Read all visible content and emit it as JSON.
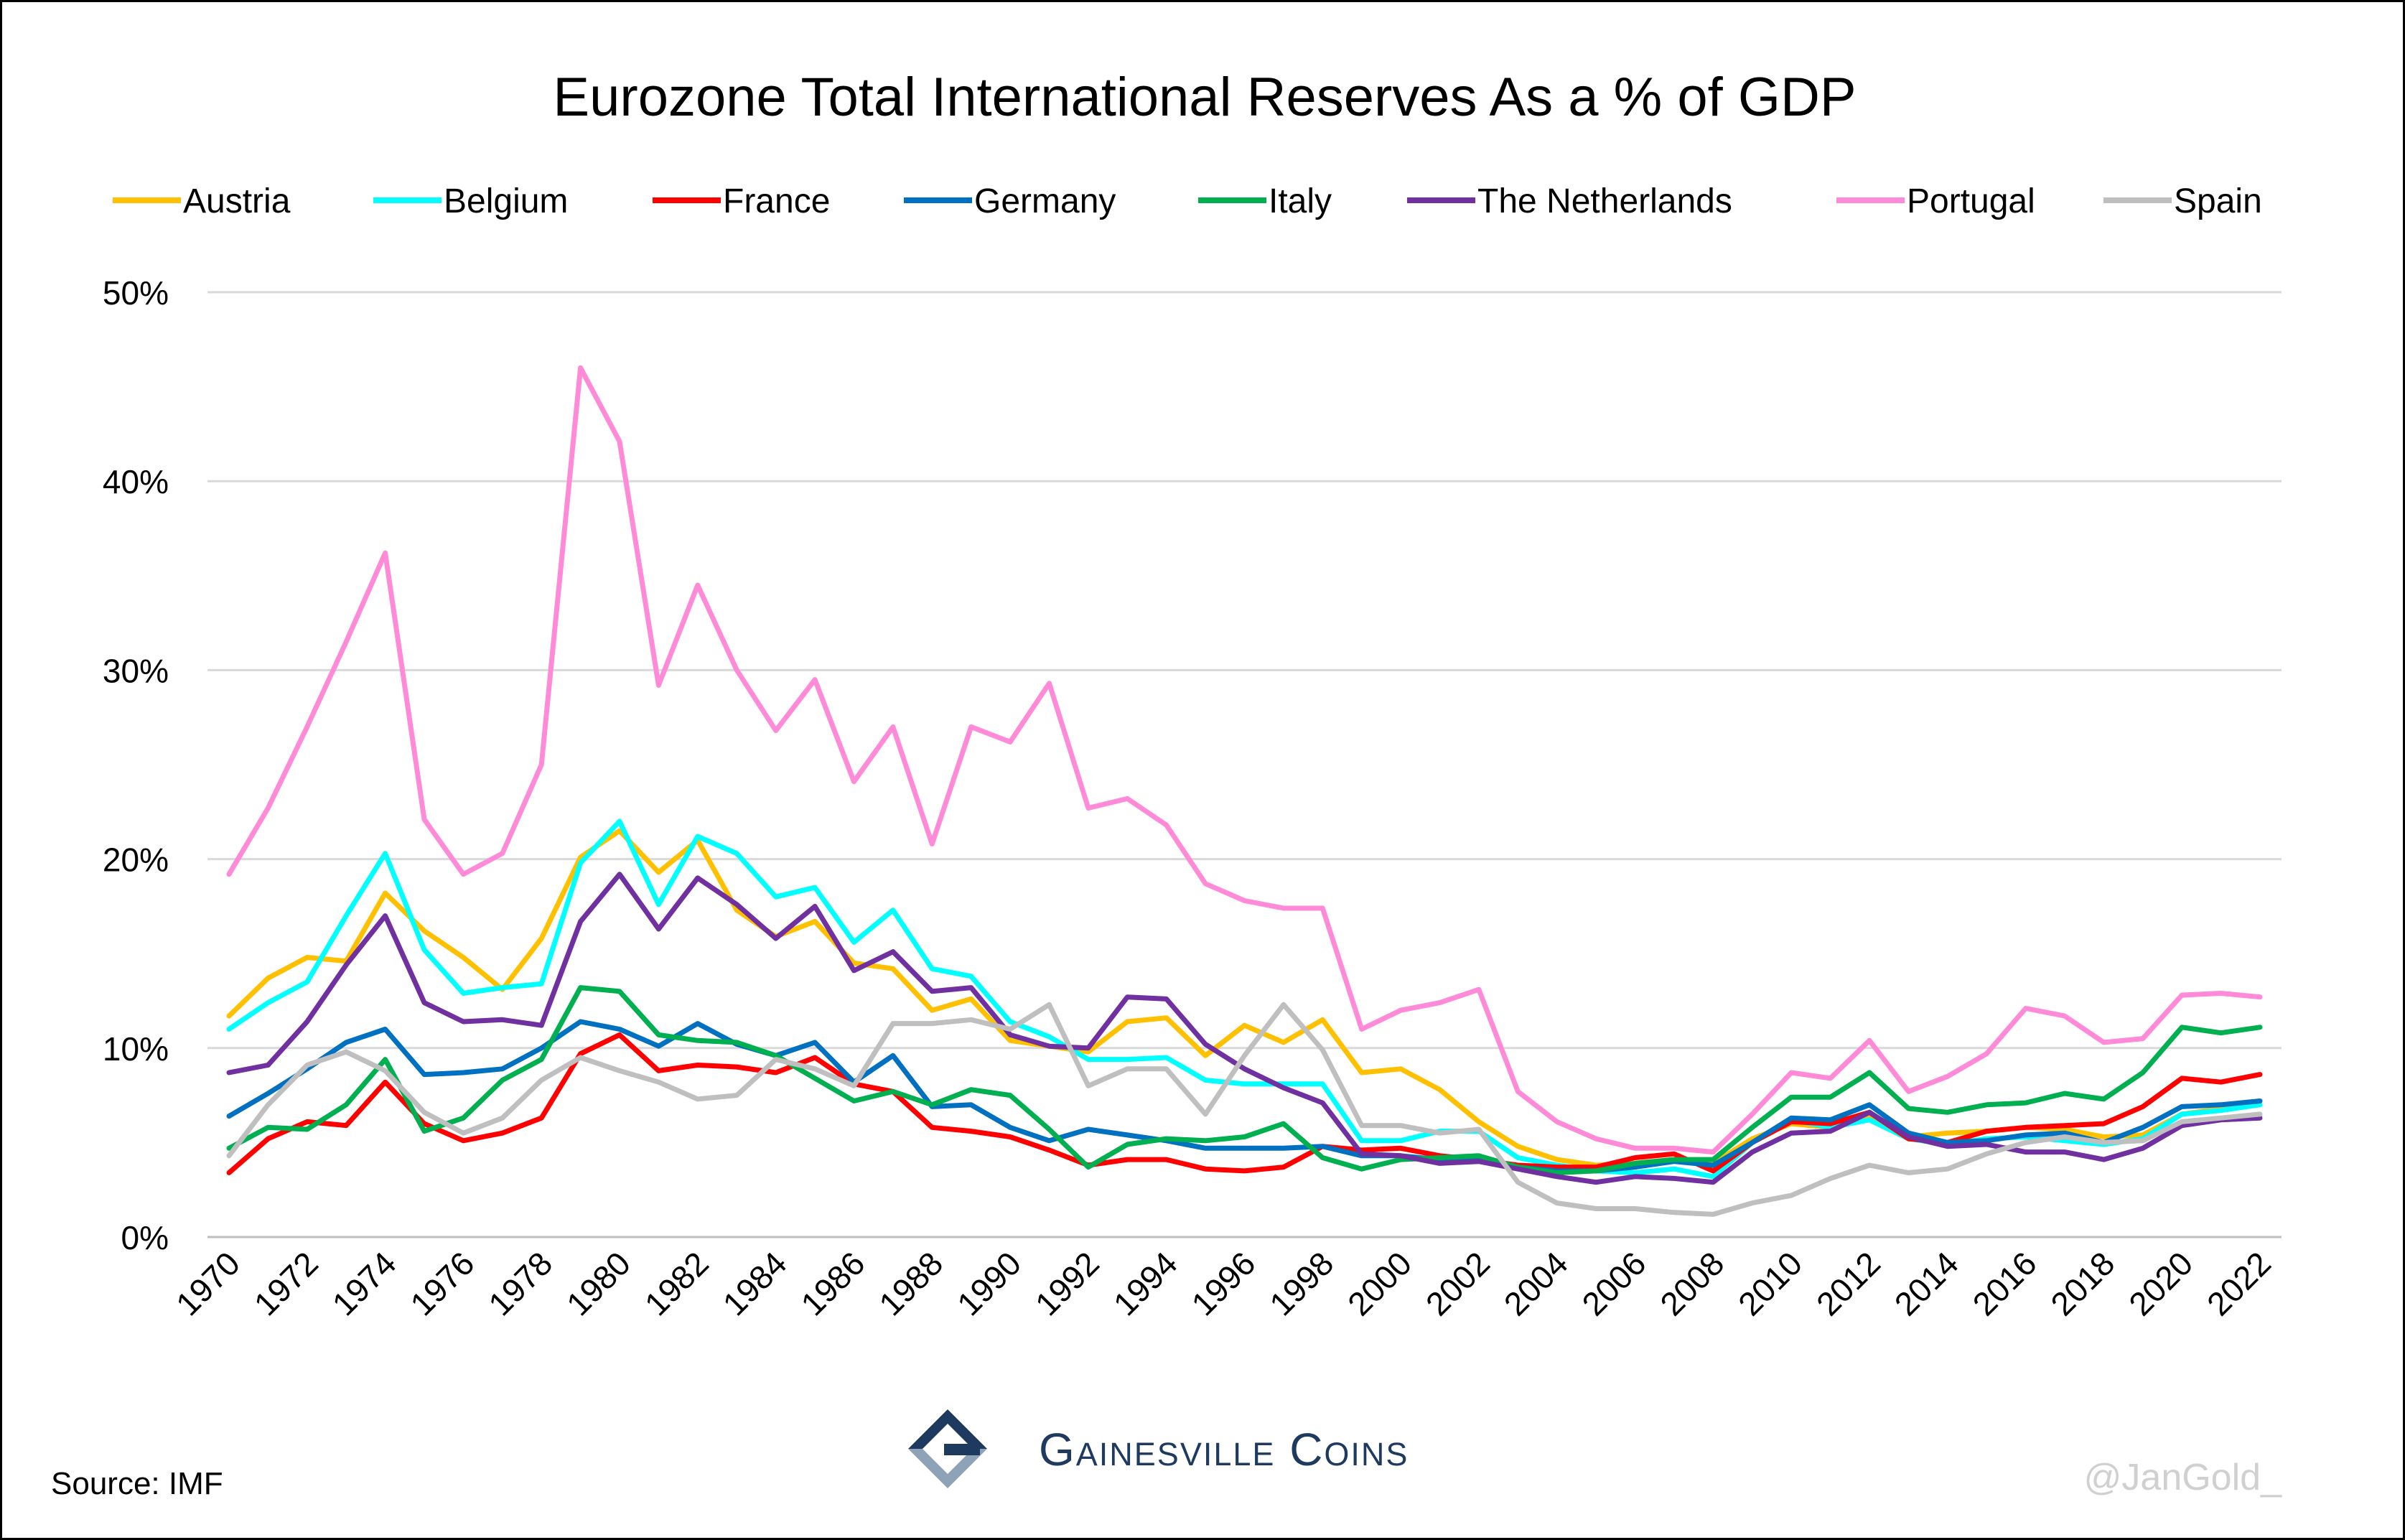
{
  "chart_data": {
    "type": "line",
    "title": "Eurozone Total International Reserves As a % of GDP",
    "xlabel": "",
    "ylabel": "",
    "ylim": [
      0,
      50
    ],
    "y_ticks": [
      "0%",
      "10%",
      "20%",
      "30%",
      "40%",
      "50%"
    ],
    "y_tick_values": [
      0,
      10,
      20,
      30,
      40,
      50
    ],
    "x_tick_labels": [
      "1970",
      "1972",
      "1974",
      "1976",
      "1978",
      "1980",
      "1982",
      "1984",
      "1986",
      "1988",
      "1990",
      "1992",
      "1994",
      "1996",
      "1998",
      "2000",
      "2002",
      "2004",
      "2006",
      "2008",
      "2010",
      "2012",
      "2014",
      "2016",
      "2018",
      "2020",
      "2022"
    ],
    "grid": "horizontal",
    "legend_position": "top",
    "x": [
      1970,
      1971,
      1972,
      1973,
      1974,
      1975,
      1976,
      1977,
      1978,
      1979,
      1980,
      1981,
      1982,
      1983,
      1984,
      1985,
      1986,
      1987,
      1988,
      1989,
      1990,
      1991,
      1992,
      1993,
      1994,
      1995,
      1996,
      1997,
      1998,
      1999,
      2000,
      2001,
      2002,
      2003,
      2004,
      2005,
      2006,
      2007,
      2008,
      2009,
      2010,
      2011,
      2012,
      2013,
      2014,
      2015,
      2016,
      2017,
      2018,
      2019,
      2020,
      2021,
      2022
    ],
    "series": [
      {
        "name": "Austria",
        "color": "#FFC000",
        "values": [
          11.7,
          13.7,
          14.8,
          14.6,
          18.2,
          16.2,
          14.8,
          13.1,
          15.8,
          20.1,
          21.5,
          19.3,
          21.0,
          17.3,
          15.9,
          16.7,
          14.5,
          14.2,
          12.0,
          12.6,
          10.4,
          10.1,
          9.8,
          11.4,
          11.6,
          9.6,
          11.2,
          10.3,
          11.5,
          8.7,
          8.9,
          7.8,
          6.1,
          4.8,
          4.1,
          3.8,
          3.9,
          4.1,
          3.9,
          5.2,
          6.0,
          5.8,
          6.4,
          5.3,
          5.5,
          5.6,
          5.8,
          5.7,
          5.3,
          5.4,
          6.5,
          6.8,
          7.0
        ]
      },
      {
        "name": "Belgium",
        "color": "#00FFFF",
        "values": [
          11.0,
          12.4,
          13.5,
          17.0,
          20.3,
          15.2,
          12.9,
          13.2,
          13.4,
          19.8,
          22.0,
          17.6,
          21.2,
          20.3,
          18.0,
          18.5,
          15.6,
          17.3,
          14.2,
          13.8,
          11.4,
          10.6,
          9.4,
          9.4,
          9.5,
          8.3,
          8.1,
          8.1,
          8.1,
          5.1,
          5.1,
          5.6,
          5.6,
          4.2,
          3.8,
          3.5,
          3.4,
          3.6,
          3.2,
          5.0,
          6.2,
          5.8,
          6.2,
          5.2,
          4.9,
          5.2,
          5.3,
          5.1,
          4.9,
          5.2,
          6.5,
          6.7,
          7.0
        ]
      },
      {
        "name": "France",
        "color": "#FF0000",
        "values": [
          3.4,
          5.2,
          6.1,
          5.9,
          8.2,
          6.0,
          5.1,
          5.5,
          6.3,
          9.7,
          10.7,
          8.8,
          9.1,
          9.0,
          8.7,
          9.5,
          8.1,
          7.7,
          5.8,
          5.6,
          5.3,
          4.6,
          3.8,
          4.1,
          4.1,
          3.6,
          3.5,
          3.7,
          4.8,
          4.6,
          4.7,
          4.3,
          4.1,
          3.8,
          3.7,
          3.7,
          4.2,
          4.4,
          3.5,
          5.0,
          6.1,
          6.0,
          6.6,
          5.2,
          5.0,
          5.6,
          5.8,
          5.9,
          6.0,
          6.9,
          8.4,
          8.2,
          8.6
        ]
      },
      {
        "name": "Germany",
        "color": "#0070C0",
        "values": [
          6.4,
          7.6,
          8.9,
          10.3,
          11.0,
          8.6,
          8.7,
          8.9,
          10.0,
          11.4,
          11.0,
          10.1,
          11.3,
          10.2,
          9.6,
          10.3,
          8.2,
          9.6,
          6.9,
          7.0,
          5.8,
          5.1,
          5.7,
          5.4,
          5.1,
          4.7,
          4.7,
          4.7,
          4.8,
          4.3,
          4.3,
          4.1,
          4.1,
          3.7,
          3.5,
          3.5,
          3.7,
          4.0,
          3.8,
          5.0,
          6.3,
          6.2,
          7.0,
          5.5,
          5.0,
          5.1,
          5.4,
          5.5,
          5.0,
          5.8,
          6.9,
          7.0,
          7.2
        ]
      },
      {
        "name": "Italy",
        "color": "#00B050",
        "values": [
          4.7,
          5.8,
          5.7,
          7.0,
          9.4,
          5.6,
          6.3,
          8.3,
          9.4,
          13.2,
          13.0,
          10.7,
          10.4,
          10.3,
          9.6,
          8.4,
          7.2,
          7.7,
          7.0,
          7.8,
          7.5,
          5.7,
          3.7,
          4.9,
          5.2,
          5.1,
          5.3,
          6.0,
          4.2,
          3.6,
          4.1,
          4.2,
          4.3,
          3.7,
          3.4,
          3.5,
          3.9,
          4.1,
          4.1,
          5.8,
          7.4,
          7.4,
          8.7,
          6.8,
          6.6,
          7.0,
          7.1,
          7.6,
          7.3,
          8.7,
          11.1,
          10.8,
          11.1
        ]
      },
      {
        "name": "The Netherlands",
        "color": "#7030A0",
        "values": [
          8.7,
          9.1,
          11.4,
          14.4,
          17.0,
          12.4,
          11.4,
          11.5,
          11.2,
          16.7,
          19.2,
          16.3,
          19.0,
          17.6,
          15.8,
          17.5,
          14.1,
          15.1,
          13.0,
          13.2,
          10.7,
          10.1,
          10.0,
          12.7,
          12.6,
          10.2,
          8.9,
          7.9,
          7.1,
          4.4,
          4.3,
          3.9,
          4.0,
          3.6,
          3.2,
          2.9,
          3.2,
          3.1,
          2.9,
          4.5,
          5.5,
          5.6,
          6.6,
          5.3,
          4.8,
          4.9,
          4.5,
          4.5,
          4.1,
          4.7,
          5.9,
          6.2,
          6.3
        ]
      },
      {
        "name": "Portugal",
        "color": "#FF8AD8",
        "values": [
          19.2,
          22.7,
          27.0,
          31.5,
          36.2,
          22.1,
          19.2,
          20.3,
          25.0,
          46.0,
          42.1,
          29.2,
          34.5,
          30.0,
          26.8,
          29.5,
          24.1,
          27.0,
          20.8,
          27.0,
          26.2,
          29.3,
          22.7,
          23.2,
          21.8,
          18.7,
          17.8,
          17.4,
          17.4,
          11.0,
          12.0,
          12.4,
          13.1,
          7.7,
          6.1,
          5.2,
          4.7,
          4.7,
          4.5,
          6.5,
          8.7,
          8.4,
          10.4,
          7.7,
          8.5,
          9.7,
          12.1,
          11.7,
          10.3,
          10.5,
          12.8,
          12.9,
          12.7
        ]
      },
      {
        "name": "Spain",
        "color": "#BFBFBF",
        "values": [
          4.3,
          7.0,
          9.1,
          9.8,
          8.8,
          6.6,
          5.5,
          6.3,
          8.3,
          9.5,
          8.8,
          8.2,
          7.3,
          7.5,
          9.4,
          8.9,
          8.0,
          11.3,
          11.3,
          11.5,
          11.0,
          12.3,
          8.0,
          8.9,
          8.9,
          6.5,
          9.6,
          12.3,
          9.9,
          5.9,
          5.9,
          5.5,
          5.7,
          2.9,
          1.8,
          1.5,
          1.5,
          1.3,
          1.2,
          1.8,
          2.2,
          3.1,
          3.8,
          3.4,
          3.6,
          4.4,
          5.0,
          5.3,
          5.0,
          5.1,
          6.1,
          6.3,
          6.5
        ]
      }
    ]
  },
  "footer": {
    "source": "Source: IMF",
    "logo_text": "Gainesville Coins",
    "watermark": "@JanGold_"
  }
}
